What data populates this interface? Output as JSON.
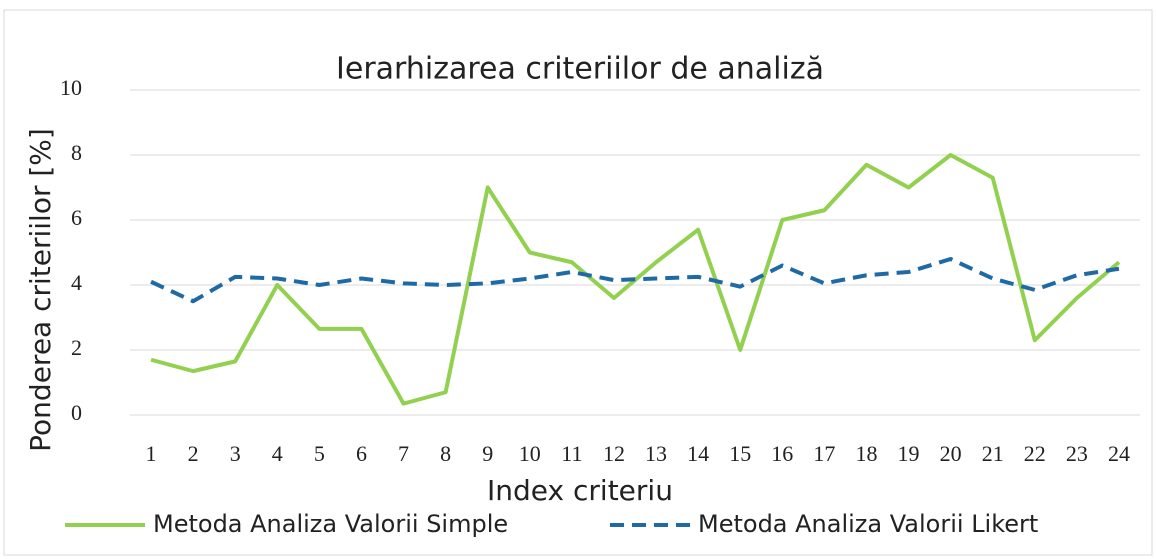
{
  "chart_data": {
    "type": "line",
    "title": "Ierarhizarea criteriilor de analiză",
    "x_label": "Index criteriu",
    "y_label": "Ponderea criteriilor  [%]",
    "categories": [
      "1",
      "2",
      "3",
      "4",
      "5",
      "6",
      "7",
      "8",
      "9",
      "10",
      "11",
      "12",
      "13",
      "14",
      "15",
      "16",
      "17",
      "18",
      "19",
      "20",
      "21",
      "22",
      "23",
      "24"
    ],
    "series": [
      {
        "name": "Metoda Analiza Valorii Simple",
        "color": "#92d050",
        "dash": false,
        "values": [
          1.7,
          1.35,
          1.65,
          4.0,
          2.65,
          2.65,
          0.35,
          0.7,
          7.0,
          5.0,
          4.7,
          3.6,
          4.7,
          5.7,
          2.0,
          6.0,
          6.3,
          7.7,
          7.0,
          8.0,
          7.3,
          2.3,
          3.6,
          4.7
        ]
      },
      {
        "name": "Metoda Analiza Valorii Likert",
        "color": "#1f6aa5",
        "dash": true,
        "values": [
          4.1,
          3.5,
          4.25,
          4.2,
          4.0,
          4.2,
          4.05,
          4.0,
          4.05,
          4.2,
          4.4,
          4.15,
          4.2,
          4.25,
          3.95,
          4.6,
          4.05,
          4.3,
          4.4,
          4.8,
          4.2,
          3.85,
          4.3,
          4.5
        ]
      }
    ],
    "ylim": [
      0,
      10
    ],
    "yticks": [
      0,
      2,
      4,
      6,
      8,
      10
    ],
    "grid": true,
    "legend": "bottom"
  }
}
